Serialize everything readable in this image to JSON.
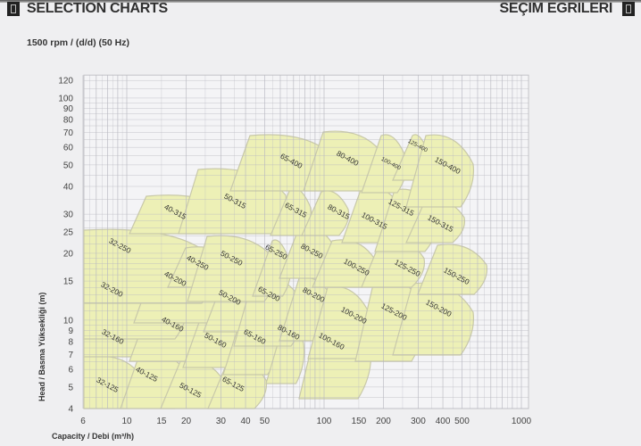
{
  "header": {
    "title_left": "SELECTION CHARTS",
    "title_right": "SEÇIM EGRILERI",
    "icon_left": "notebook-icon",
    "icon_right": "notebook-icon"
  },
  "subtitle": "1500 rpm / (d/d) (50 Hz)",
  "chart_data": {
    "type": "area",
    "title": "",
    "xlabel": "Capacity / Debi (m³/h)",
    "ylabel": "Head / Basma Yüksekliği (m)",
    "x_scale": "log",
    "y_scale": "log",
    "xlim": [
      6,
      1000
    ],
    "ylim": [
      4,
      120
    ],
    "grid": true,
    "x_ticks": [
      6,
      10,
      15,
      20,
      30,
      40,
      50,
      100,
      150,
      200,
      300,
      400,
      500,
      1000
    ],
    "y_ticks": [
      4,
      5,
      6,
      7,
      8,
      9,
      10,
      15,
      20,
      25,
      30,
      40,
      50,
      60,
      70,
      80,
      90,
      100,
      120
    ],
    "region_fill": "#edf0b6",
    "region_stroke": "#c9c9a9",
    "pumps": [
      "32-125",
      "40-125",
      "50-125",
      "65-125",
      "32-160",
      "40-160",
      "50-160",
      "65-160",
      "80-160",
      "100-160",
      "32-200",
      "40-200",
      "50-200",
      "65-200",
      "80-200",
      "100-200",
      "125-200",
      "150-200",
      "32-250",
      "40-250",
      "50-250",
      "65-250",
      "80-250",
      "100-250",
      "125-250",
      "150-250",
      "40-315",
      "50-315",
      "65-315",
      "80-315",
      "100-315",
      "125-315",
      "150-315",
      "65-400",
      "80-400",
      "100-400",
      "125-400",
      "150-400"
    ]
  }
}
